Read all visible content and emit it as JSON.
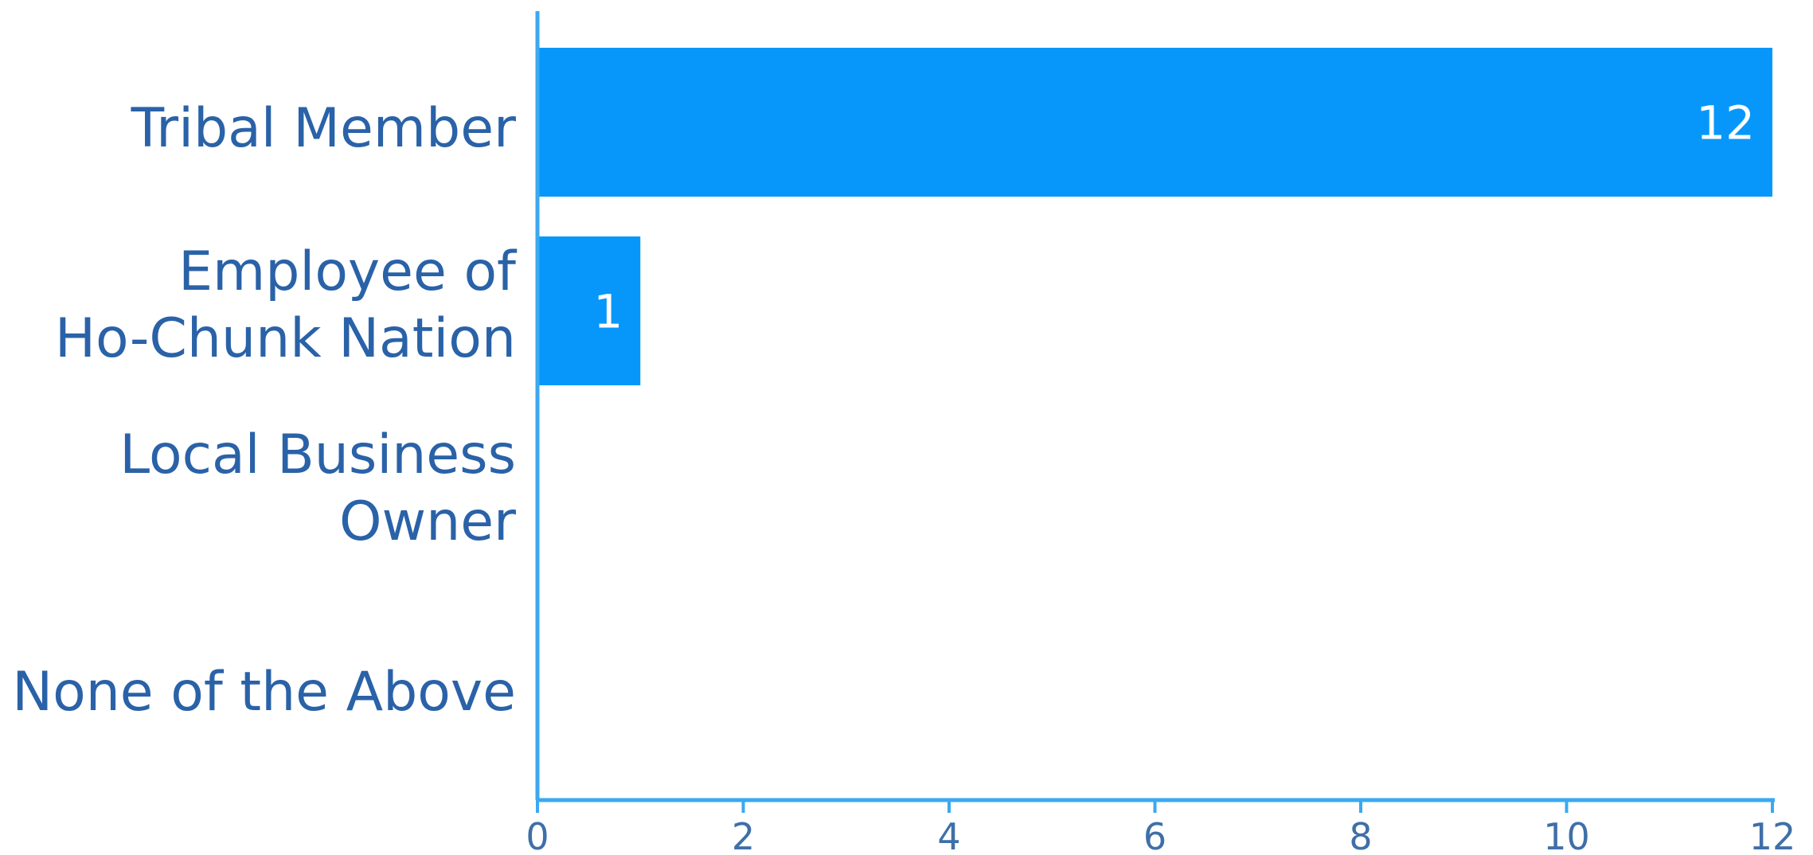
{
  "chart_data": {
    "type": "bar",
    "orientation": "horizontal",
    "categories": [
      [
        "Tribal Member"
      ],
      [
        "Employee of",
        "Ho-Chunk Nation"
      ],
      [
        "Local Business",
        "Owner"
      ],
      [
        "None of the Above"
      ]
    ],
    "values": [
      12,
      1,
      0,
      0
    ],
    "data_labels": [
      "12",
      "1",
      "",
      ""
    ],
    "xlim": [
      0,
      12
    ],
    "xticks": [
      "0",
      "2",
      "4",
      "6",
      "8",
      "10",
      "12"
    ],
    "title": "",
    "xlabel": "",
    "ylabel": "",
    "grid": false,
    "colors": {
      "bar": "#0797FA",
      "axis": "#3BA8F0",
      "category_text": "#2A62A8",
      "tick_text": "#3F6FA8",
      "value_text": "#ffffff"
    }
  }
}
